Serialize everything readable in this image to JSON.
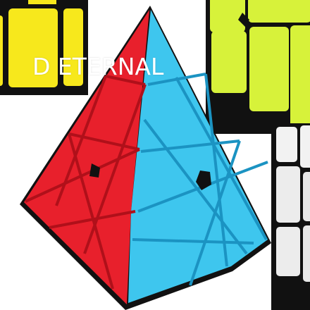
{
  "watermark": {
    "text": "D ETERNAL"
  },
  "colors": {
    "background": "#ffffff",
    "red": "#e8202c",
    "red_dark": "#c8141f",
    "blue": "#3ec6ee",
    "blue_dark": "#22a6d4",
    "yellow": "#f7e81c",
    "green_yellow": "#d7f23a",
    "black": "#111111",
    "white_cube": "#f2f2f2"
  },
  "objects": {
    "main": "pyraminx-icon",
    "top_left": "mirror-cube-icon",
    "top_right": "speed-cube-icon",
    "right": "white-cube-icon"
  }
}
